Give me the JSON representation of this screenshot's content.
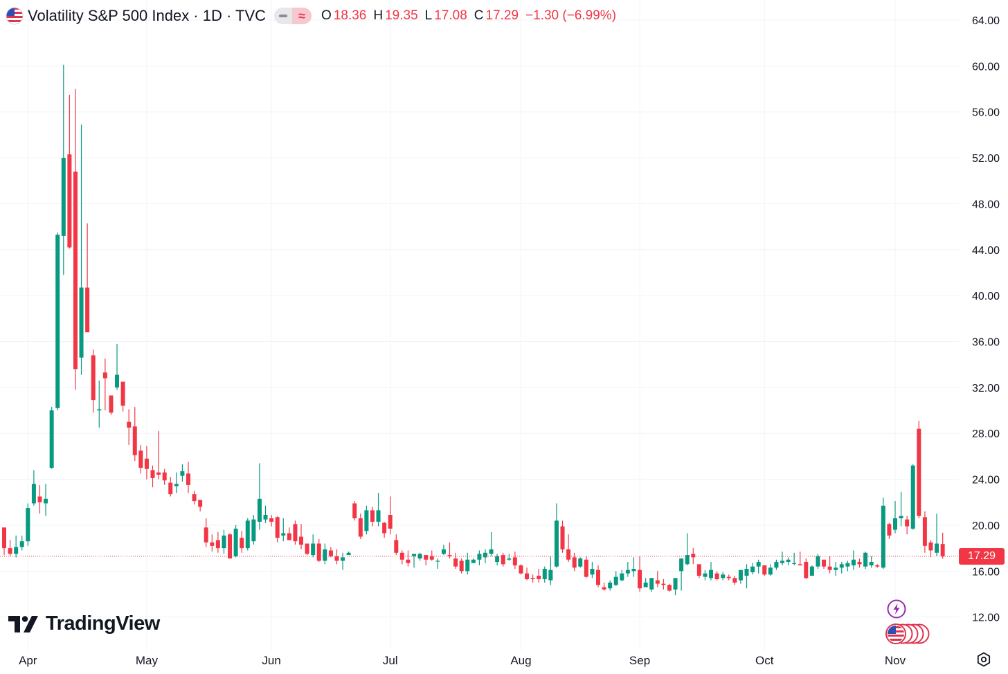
{
  "header": {
    "title": "Volatility S&P 500 Index · 1D · TVC",
    "open_label": "O",
    "open": "18.36",
    "high_label": "H",
    "high": "19.35",
    "low_label": "L",
    "low": "17.08",
    "close_label": "C",
    "close": "17.29",
    "change": "−1.30 (−6.99%)"
  },
  "logo": {
    "text": "TradingView"
  },
  "price_tag": "17.29",
  "icons": [
    "us-flag-icon",
    "tradingview-logo-icon",
    "lightning-bolt-icon",
    "us-flags-cluster-icon",
    "gear-icon"
  ],
  "colors": {
    "up": "#089981",
    "down": "#f23645",
    "grid": "#f0f3fa",
    "text": "#131722"
  },
  "chart_data": {
    "type": "candlestick",
    "y_ticks": [
      "64.00",
      "60.00",
      "56.00",
      "52.00",
      "48.00",
      "44.00",
      "40.00",
      "36.00",
      "32.00",
      "28.00",
      "24.00",
      "20.00",
      "16.00",
      "12.00"
    ],
    "y_range": [
      10,
      65
    ],
    "x_labels": [
      {
        "label": "Apr",
        "index": 4
      },
      {
        "label": "May",
        "index": 24
      },
      {
        "label": "Jun",
        "index": 45
      },
      {
        "label": "Jul",
        "index": 65
      },
      {
        "label": "Aug",
        "index": 87
      },
      {
        "label": "Sep",
        "index": 107
      },
      {
        "label": "Oct",
        "index": 128
      },
      {
        "label": "Nov",
        "index": 150
      }
    ],
    "last_price": 17.29,
    "candles": [
      [
        19.8,
        19.8,
        17.4,
        18.0
      ],
      [
        18.0,
        18.7,
        17.3,
        17.5
      ],
      [
        17.5,
        19.1,
        17.2,
        18.1
      ],
      [
        18.1,
        19.1,
        17.8,
        18.6
      ],
      [
        18.6,
        21.9,
        18.2,
        21.5
      ],
      [
        21.9,
        24.8,
        21.7,
        23.6
      ],
      [
        22.5,
        23.5,
        21.0,
        22.0
      ],
      [
        21.9,
        23.6,
        20.8,
        22.3
      ],
      [
        25.0,
        30.3,
        24.9,
        30.0
      ],
      [
        30.2,
        45.5,
        30.0,
        45.3
      ],
      [
        45.2,
        60.1,
        41.8,
        52.0
      ],
      [
        52.3,
        57.5,
        44.1,
        44.2
      ],
      [
        50.8,
        58.0,
        31.8,
        33.6
      ],
      [
        34.6,
        54.9,
        33.1,
        40.7
      ],
      [
        40.7,
        46.3,
        37.0,
        36.8
      ],
      [
        34.8,
        35.3,
        29.8,
        30.9
      ],
      [
        30.0,
        32.6,
        28.5,
        30.1
      ],
      [
        33.3,
        34.5,
        30.0,
        32.8
      ],
      [
        31.3,
        31.3,
        29.6,
        29.8
      ],
      [
        32.0,
        35.8,
        31.8,
        33.1
      ],
      [
        32.5,
        32.5,
        29.9,
        30.4
      ],
      [
        29.0,
        30.1,
        27.0,
        28.5
      ],
      [
        28.6,
        30.3,
        25.6,
        26.1
      ],
      [
        26.5,
        27.0,
        24.5,
        25.0
      ],
      [
        25.8,
        26.9,
        24.0,
        24.9
      ],
      [
        24.8,
        25.2,
        23.3,
        24.1
      ],
      [
        24.6,
        28.2,
        24.0,
        24.4
      ],
      [
        24.6,
        24.9,
        23.5,
        23.9
      ],
      [
        23.7,
        24.2,
        22.5,
        22.7
      ],
      [
        23.4,
        24.6,
        22.8,
        23.6
      ],
      [
        24.3,
        25.3,
        23.8,
        24.7
      ],
      [
        24.5,
        25.5,
        22.8,
        23.5
      ],
      [
        22.7,
        23.0,
        21.8,
        22.1
      ],
      [
        22.2,
        22.2,
        21.2,
        21.6
      ],
      [
        19.8,
        20.6,
        18.1,
        18.5
      ],
      [
        18.5,
        19.2,
        17.7,
        18.2
      ],
      [
        18.7,
        19.4,
        17.6,
        18.0
      ],
      [
        18.0,
        19.6,
        17.5,
        19.1
      ],
      [
        19.2,
        19.3,
        17.1,
        17.1
      ],
      [
        17.3,
        20.0,
        17.2,
        19.7
      ],
      [
        18.9,
        19.5,
        17.6,
        18.0
      ],
      [
        18.0,
        20.6,
        17.8,
        20.4
      ],
      [
        18.6,
        20.9,
        18.3,
        20.5
      ],
      [
        20.3,
        25.4,
        19.6,
        22.3
      ],
      [
        20.5,
        21.7,
        20.2,
        20.9
      ],
      [
        20.6,
        20.9,
        19.9,
        20.3
      ],
      [
        20.7,
        20.8,
        18.5,
        18.9
      ],
      [
        19.1,
        20.6,
        18.6,
        19.3
      ],
      [
        19.3,
        19.8,
        18.7,
        18.7
      ],
      [
        20.1,
        20.4,
        18.3,
        18.6
      ],
      [
        19.0,
        20.1,
        17.9,
        18.3
      ],
      [
        18.4,
        18.4,
        17.4,
        17.5
      ],
      [
        17.4,
        19.2,
        17.2,
        18.4
      ],
      [
        18.4,
        18.8,
        16.8,
        16.9
      ],
      [
        16.9,
        18.4,
        16.6,
        17.9
      ],
      [
        17.8,
        18.1,
        17.2,
        17.3
      ],
      [
        17.3,
        17.9,
        16.6,
        16.9
      ],
      [
        16.9,
        17.6,
        16.1,
        17.2
      ],
      [
        17.4,
        17.7,
        17.4,
        17.6
      ],
      [
        21.9,
        22.1,
        20.4,
        20.6
      ],
      [
        20.6,
        21.0,
        18.8,
        19.0
      ],
      [
        19.5,
        21.7,
        19.2,
        21.3
      ],
      [
        21.3,
        21.6,
        19.9,
        20.3
      ],
      [
        20.3,
        22.8,
        19.9,
        21.3
      ],
      [
        20.2,
        20.3,
        18.9,
        19.3
      ],
      [
        20.9,
        22.5,
        19.2,
        19.7
      ],
      [
        18.7,
        19.2,
        17.4,
        17.6
      ],
      [
        17.6,
        17.8,
        16.6,
        17.0
      ],
      [
        17.0,
        17.8,
        16.4,
        16.7
      ],
      [
        17.3,
        17.5,
        16.3,
        17.5
      ],
      [
        17.1,
        17.6,
        16.9,
        17.5
      ],
      [
        17.4,
        17.4,
        16.5,
        17.0
      ],
      [
        17.3,
        17.8,
        16.9,
        17.0
      ],
      [
        16.9,
        17.1,
        16.2,
        16.9
      ],
      [
        17.5,
        18.3,
        17.4,
        17.9
      ],
      [
        17.4,
        18.5,
        17.1,
        17.3
      ],
      [
        17.1,
        17.6,
        16.2,
        16.4
      ],
      [
        16.9,
        17.1,
        15.8,
        16.0
      ],
      [
        16.0,
        17.6,
        15.7,
        17.0
      ],
      [
        16.7,
        17.1,
        16.8,
        17.0
      ],
      [
        17.0,
        17.8,
        16.5,
        17.5
      ],
      [
        17.2,
        17.9,
        16.7,
        17.6
      ],
      [
        17.5,
        19.4,
        17.3,
        17.9
      ],
      [
        16.8,
        17.5,
        16.5,
        17.3
      ],
      [
        17.4,
        17.6,
        16.4,
        16.6
      ],
      [
        17.0,
        17.5,
        16.9,
        17.1
      ],
      [
        17.2,
        17.7,
        16.2,
        16.5
      ],
      [
        16.5,
        16.6,
        15.7,
        15.8
      ],
      [
        15.8,
        16.3,
        15.2,
        15.3
      ],
      [
        15.4,
        15.7,
        15.0,
        15.3
      ],
      [
        15.6,
        16.2,
        15.0,
        15.3
      ],
      [
        15.3,
        16.4,
        15.0,
        16.2
      ],
      [
        15.2,
        17.3,
        14.8,
        16.1
      ],
      [
        16.4,
        21.9,
        16.3,
        20.4
      ],
      [
        19.9,
        20.4,
        17.6,
        17.9
      ],
      [
        17.9,
        19.2,
        16.8,
        17.0
      ],
      [
        17.2,
        17.6,
        16.0,
        16.3
      ],
      [
        16.4,
        17.2,
        16.3,
        17.1
      ],
      [
        17.0,
        17.3,
        15.4,
        15.5
      ],
      [
        15.7,
        16.8,
        15.4,
        16.2
      ],
      [
        16.1,
        16.5,
        14.6,
        14.8
      ],
      [
        14.6,
        15.0,
        14.3,
        14.4
      ],
      [
        14.5,
        15.2,
        14.3,
        15.0
      ],
      [
        14.8,
        16.0,
        14.7,
        15.5
      ],
      [
        15.2,
        16.1,
        15.1,
        15.8
      ],
      [
        15.8,
        16.8,
        15.5,
        16.1
      ],
      [
        16.0,
        17.2,
        15.5,
        16.2
      ],
      [
        16.1,
        17.3,
        14.2,
        14.5
      ],
      [
        14.6,
        15.4,
        14.6,
        15.0
      ],
      [
        14.4,
        15.4,
        14.2,
        15.4
      ],
      [
        15.2,
        16.0,
        14.6,
        14.9
      ],
      [
        14.9,
        15.3,
        14.4,
        14.8
      ],
      [
        14.8,
        14.9,
        14.2,
        14.3
      ],
      [
        14.4,
        15.2,
        13.9,
        15.4
      ],
      [
        16.0,
        17.1,
        14.3,
        17.1
      ],
      [
        16.6,
        19.3,
        16.5,
        17.4
      ],
      [
        17.5,
        18.0,
        16.6,
        17.2
      ],
      [
        16.6,
        16.6,
        15.4,
        15.6
      ],
      [
        15.5,
        16.1,
        15.2,
        15.8
      ],
      [
        15.4,
        16.8,
        15.2,
        16.1
      ],
      [
        15.8,
        16.0,
        15.2,
        15.3
      ],
      [
        15.4,
        15.9,
        15.2,
        15.7
      ],
      [
        15.5,
        15.7,
        15.2,
        15.4
      ],
      [
        15.4,
        15.6,
        14.8,
        15.0
      ],
      [
        15.2,
        16.1,
        14.9,
        16.1
      ],
      [
        15.6,
        16.6,
        14.5,
        16.2
      ],
      [
        15.9,
        16.7,
        15.7,
        16.4
      ],
      [
        16.4,
        17.0,
        15.8,
        16.8
      ],
      [
        16.5,
        16.5,
        15.6,
        15.7
      ],
      [
        15.7,
        16.6,
        15.6,
        16.3
      ],
      [
        16.3,
        17.0,
        16.1,
        16.8
      ],
      [
        16.7,
        17.7,
        16.5,
        16.9
      ],
      [
        16.8,
        17.2,
        16.5,
        17.0
      ],
      [
        16.7,
        17.6,
        16.5,
        16.7
      ],
      [
        16.6,
        17.7,
        16.5,
        16.5
      ],
      [
        16.8,
        17.1,
        15.3,
        15.4
      ],
      [
        15.6,
        16.5,
        15.6,
        16.4
      ],
      [
        16.4,
        17.5,
        16.2,
        17.3
      ],
      [
        17.0,
        17.0,
        16.2,
        16.4
      ],
      [
        16.4,
        17.3,
        15.8,
        16.1
      ],
      [
        16.1,
        16.8,
        15.6,
        16.3
      ],
      [
        16.3,
        16.8,
        15.8,
        16.6
      ],
      [
        16.4,
        16.9,
        16.0,
        16.7
      ],
      [
        16.5,
        17.8,
        16.1,
        17.0
      ],
      [
        16.8,
        17.1,
        16.3,
        16.6
      ],
      [
        16.4,
        17.7,
        16.2,
        17.6
      ],
      [
        16.5,
        17.3,
        16.3,
        16.8
      ],
      [
        16.5,
        16.6,
        16.3,
        16.4
      ],
      [
        16.3,
        22.4,
        16.2,
        21.7
      ],
      [
        20.1,
        20.2,
        18.8,
        19.1
      ],
      [
        19.6,
        22.1,
        19.3,
        20.6
      ],
      [
        20.6,
        22.9,
        19.9,
        20.8
      ],
      [
        20.5,
        20.8,
        19.2,
        19.9
      ],
      [
        19.7,
        25.3,
        19.6,
        25.2
      ],
      [
        28.4,
        29.1,
        20.6,
        20.8
      ],
      [
        20.7,
        21.2,
        17.6,
        18.2
      ],
      [
        18.5,
        18.7,
        17.2,
        17.8
      ],
      [
        17.6,
        21.0,
        17.3,
        18.4
      ],
      [
        18.36,
        19.35,
        17.08,
        17.29
      ]
    ]
  }
}
